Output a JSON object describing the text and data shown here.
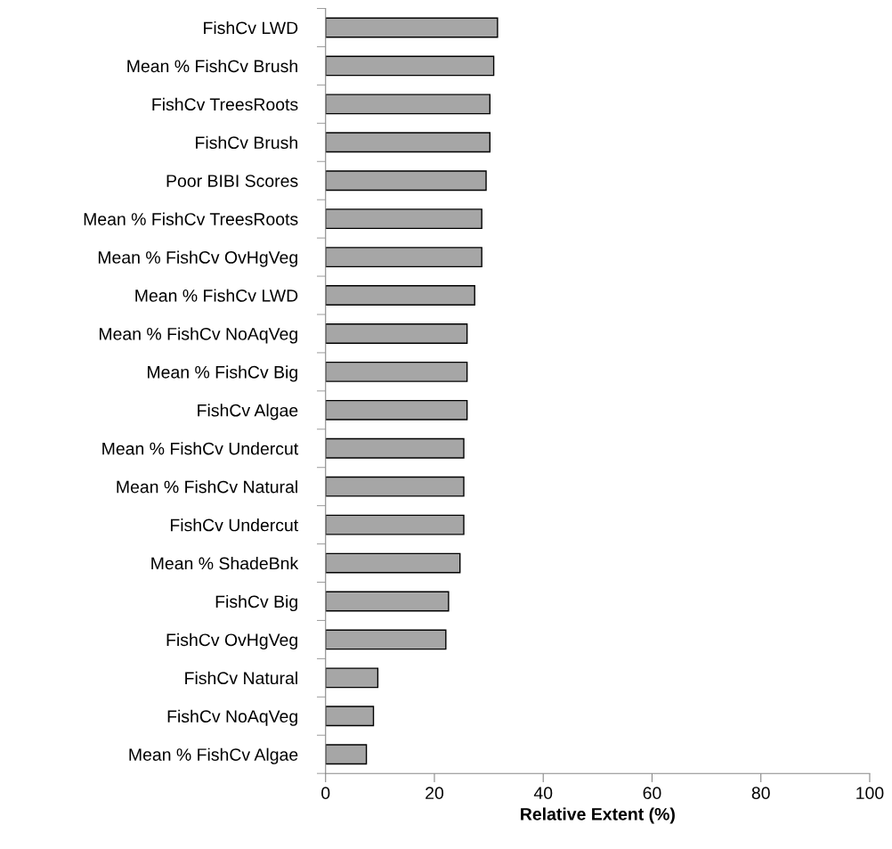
{
  "chart_data": {
    "type": "bar",
    "orientation": "horizontal",
    "xlabel": "Relative Extent (%)",
    "categories": [
      "FishCv LWD",
      "Mean % FishCv Brush",
      "FishCv TreesRoots",
      "FishCv Brush",
      "Poor BIBI Scores",
      "Mean % FishCv TreesRoots",
      "Mean % FishCv OvHgVeg",
      "Mean % FishCv LWD",
      "Mean % FishCv NoAqVeg",
      "Mean % FishCv Big",
      "FishCv Algae",
      "Mean % FishCv Undercut",
      "Mean % FishCv Natural",
      "FishCv Undercut",
      "Mean % ShadeBnk",
      "FishCv Big",
      "FishCv OvHgVeg",
      "FishCv Natural",
      "FishCv NoAqVeg",
      "Mean % FishCv Algae"
    ],
    "values": [
      31.6,
      30.9,
      30.2,
      30.2,
      29.5,
      28.7,
      28.7,
      27.4,
      26.0,
      26.0,
      26.0,
      25.4,
      25.4,
      25.4,
      24.7,
      22.6,
      22.1,
      9.6,
      8.8,
      7.5
    ],
    "color": "#a6a6a6",
    "xlim": [
      0,
      100
    ],
    "xticks": [
      0,
      20,
      40,
      60,
      80,
      100
    ],
    "grid": false,
    "legend": false
  }
}
